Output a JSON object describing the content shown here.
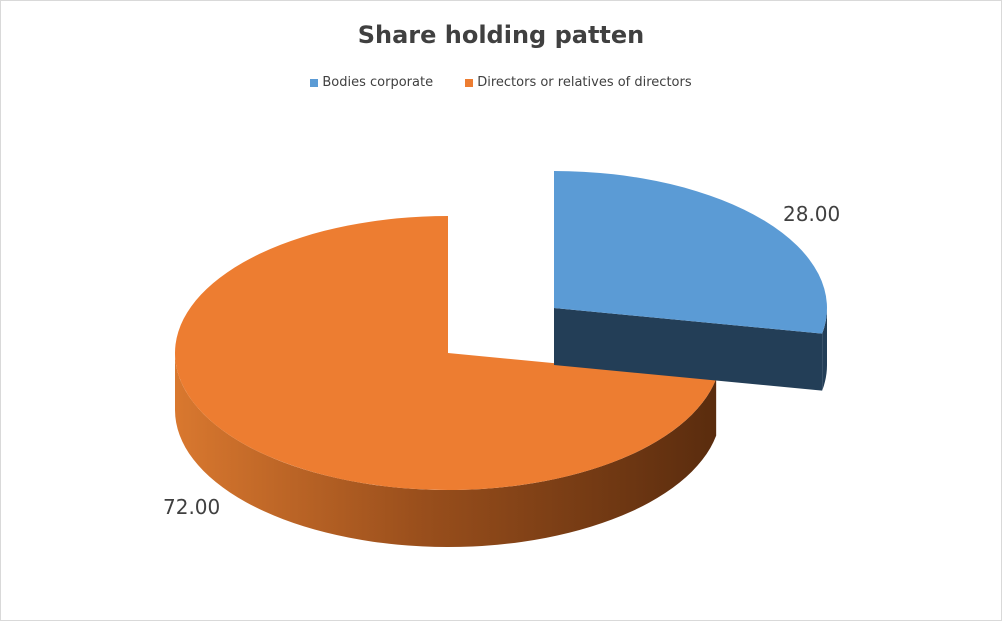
{
  "chart_data": {
    "type": "pie",
    "title": "Share holding patten",
    "three_d": true,
    "legend_position": "top",
    "slices": [
      {
        "name": "Bodies corporate",
        "value": 28.0,
        "label": "28.00",
        "color": "#5b9bd5",
        "exploded": true
      },
      {
        "name": "Directors or relatives of directors",
        "value": 72.0,
        "label": "72.00",
        "color": "#ed7d31",
        "exploded": false
      }
    ]
  }
}
